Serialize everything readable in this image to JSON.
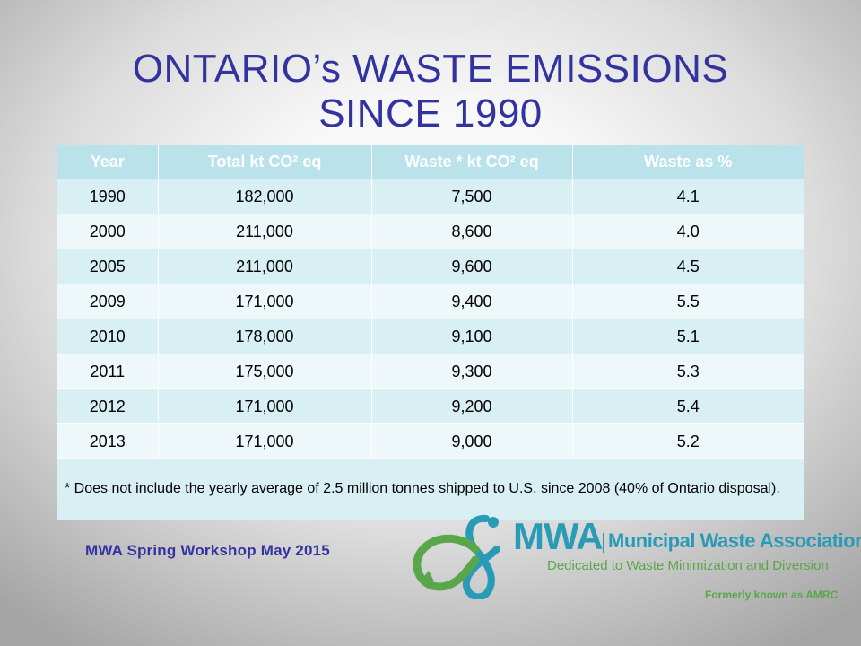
{
  "title": {
    "line1": "ONTARIO’s WASTE EMISSIONS",
    "line2": "SINCE 1990"
  },
  "table": {
    "headers": [
      "Year",
      "Total kt CO² eq",
      "Waste * kt CO² eq",
      "Waste as %"
    ],
    "rows": [
      [
        "1990",
        "182,000",
        "7,500",
        "4.1"
      ],
      [
        "2000",
        "211,000",
        "8,600",
        "4.0"
      ],
      [
        "2005",
        "211,000",
        "9,600",
        "4.5"
      ],
      [
        "2009",
        "171,000",
        "9,400",
        "5.5"
      ],
      [
        "2010",
        "178,000",
        "9,100",
        "5.1"
      ],
      [
        "2011",
        "175,000",
        "9,300",
        "5.3"
      ],
      [
        "2012",
        "171,000",
        "9,200",
        "5.4"
      ],
      [
        "2013",
        "171,000",
        "9,000",
        "5.2"
      ]
    ],
    "footnote": "* Does not include the yearly average of 2.5 million tonnes shipped to U.S. since 2008 (40% of Ontario disposal)."
  },
  "footer": {
    "event": "MWA Spring Workshop May 2015"
  },
  "logo": {
    "acronym": "MWA",
    "name": "Municipal Waste Association",
    "tagline": "Dedicated to Waste Minimization and Diversion",
    "formerly": "Formerly known as AMRC"
  },
  "colors": {
    "title": "#3333a0",
    "header_bg": "#b9e2ea",
    "row_odd": "#d8eff4",
    "row_even": "#eef8fa",
    "logo_blue": "#2a9bb7",
    "logo_green": "#5aa64a"
  }
}
